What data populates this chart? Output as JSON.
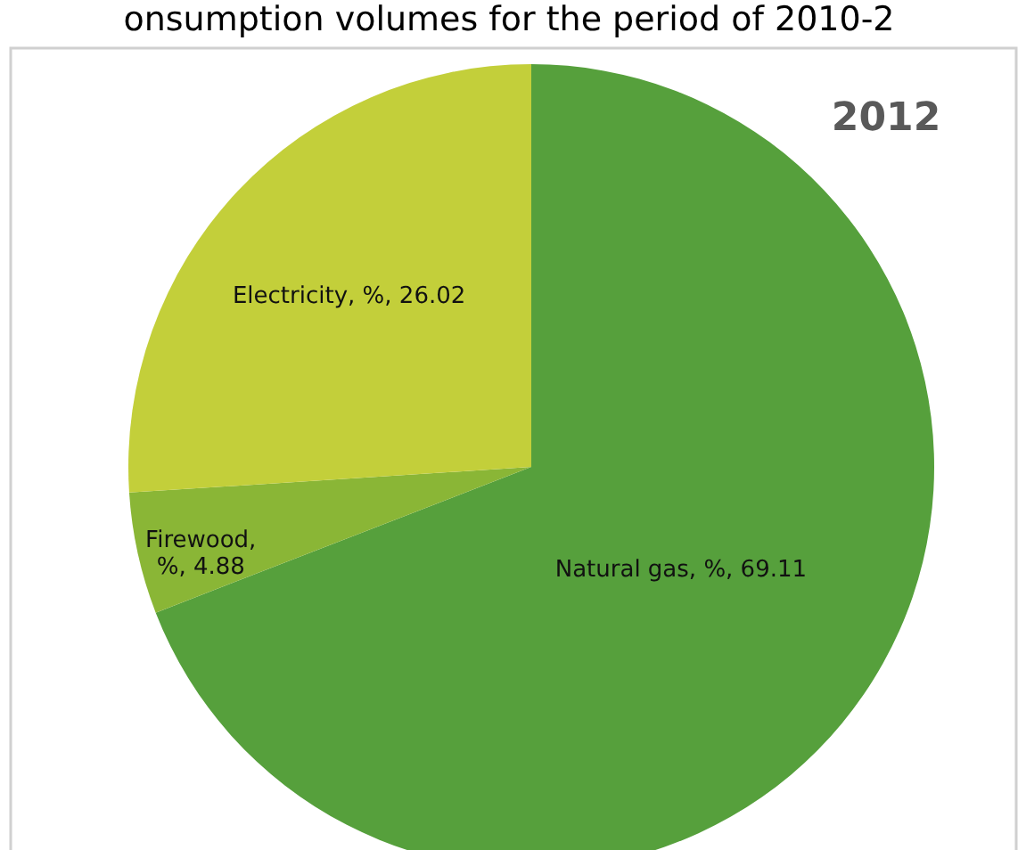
{
  "chart_data": {
    "type": "pie",
    "title": "onsumption volumes for the period of 2010-2",
    "subtitle": "2012",
    "categories": [
      "Natural gas",
      "Firewood",
      "Electricity"
    ],
    "values": [
      69.11,
      4.88,
      26.02
    ],
    "colors": [
      "#56a03c",
      "#8ab636",
      "#c3cf3a"
    ],
    "value_labels": [
      ", %, 69.11",
      ", %, 4.88",
      ", %, 26.02"
    ]
  }
}
